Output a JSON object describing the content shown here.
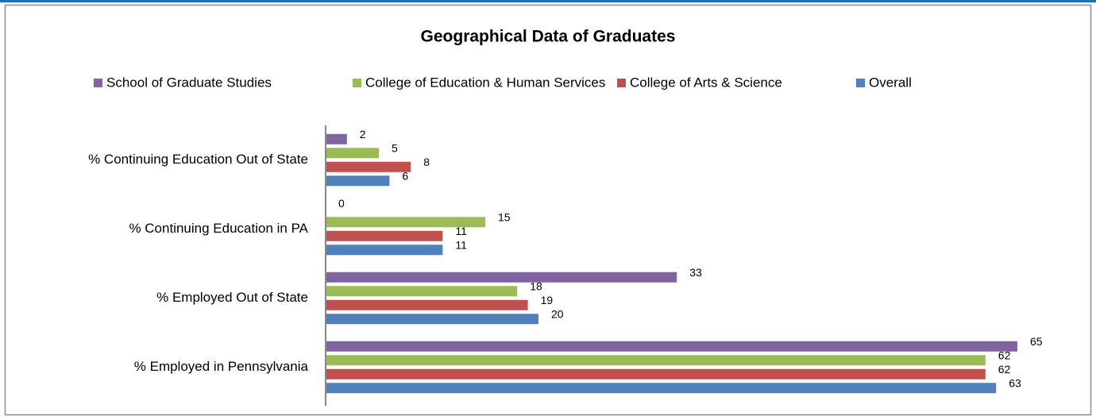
{
  "chart_data": {
    "type": "hbar",
    "title": "Geographical Data of Graduates",
    "categories": [
      "% Continuing Education Out of State",
      "% Continuing Education in PA",
      "% Employed Out of State",
      "% Employed in Pennsylvania"
    ],
    "series": [
      {
        "name": "School of Graduate Studies",
        "color": "#8064a2",
        "values": [
          2,
          0,
          33,
          65
        ]
      },
      {
        "name": "College of Education & Human Services",
        "color": "#9bbb59",
        "values": [
          5,
          15,
          18,
          62
        ]
      },
      {
        "name": "College of Arts & Science",
        "color": "#c0504d",
        "values": [
          8,
          11,
          19,
          62
        ]
      },
      {
        "name": "Overall",
        "color": "#4f81bd",
        "values": [
          6,
          11,
          20,
          63
        ]
      }
    ],
    "xlim": [
      0,
      65
    ],
    "legend": "top"
  }
}
